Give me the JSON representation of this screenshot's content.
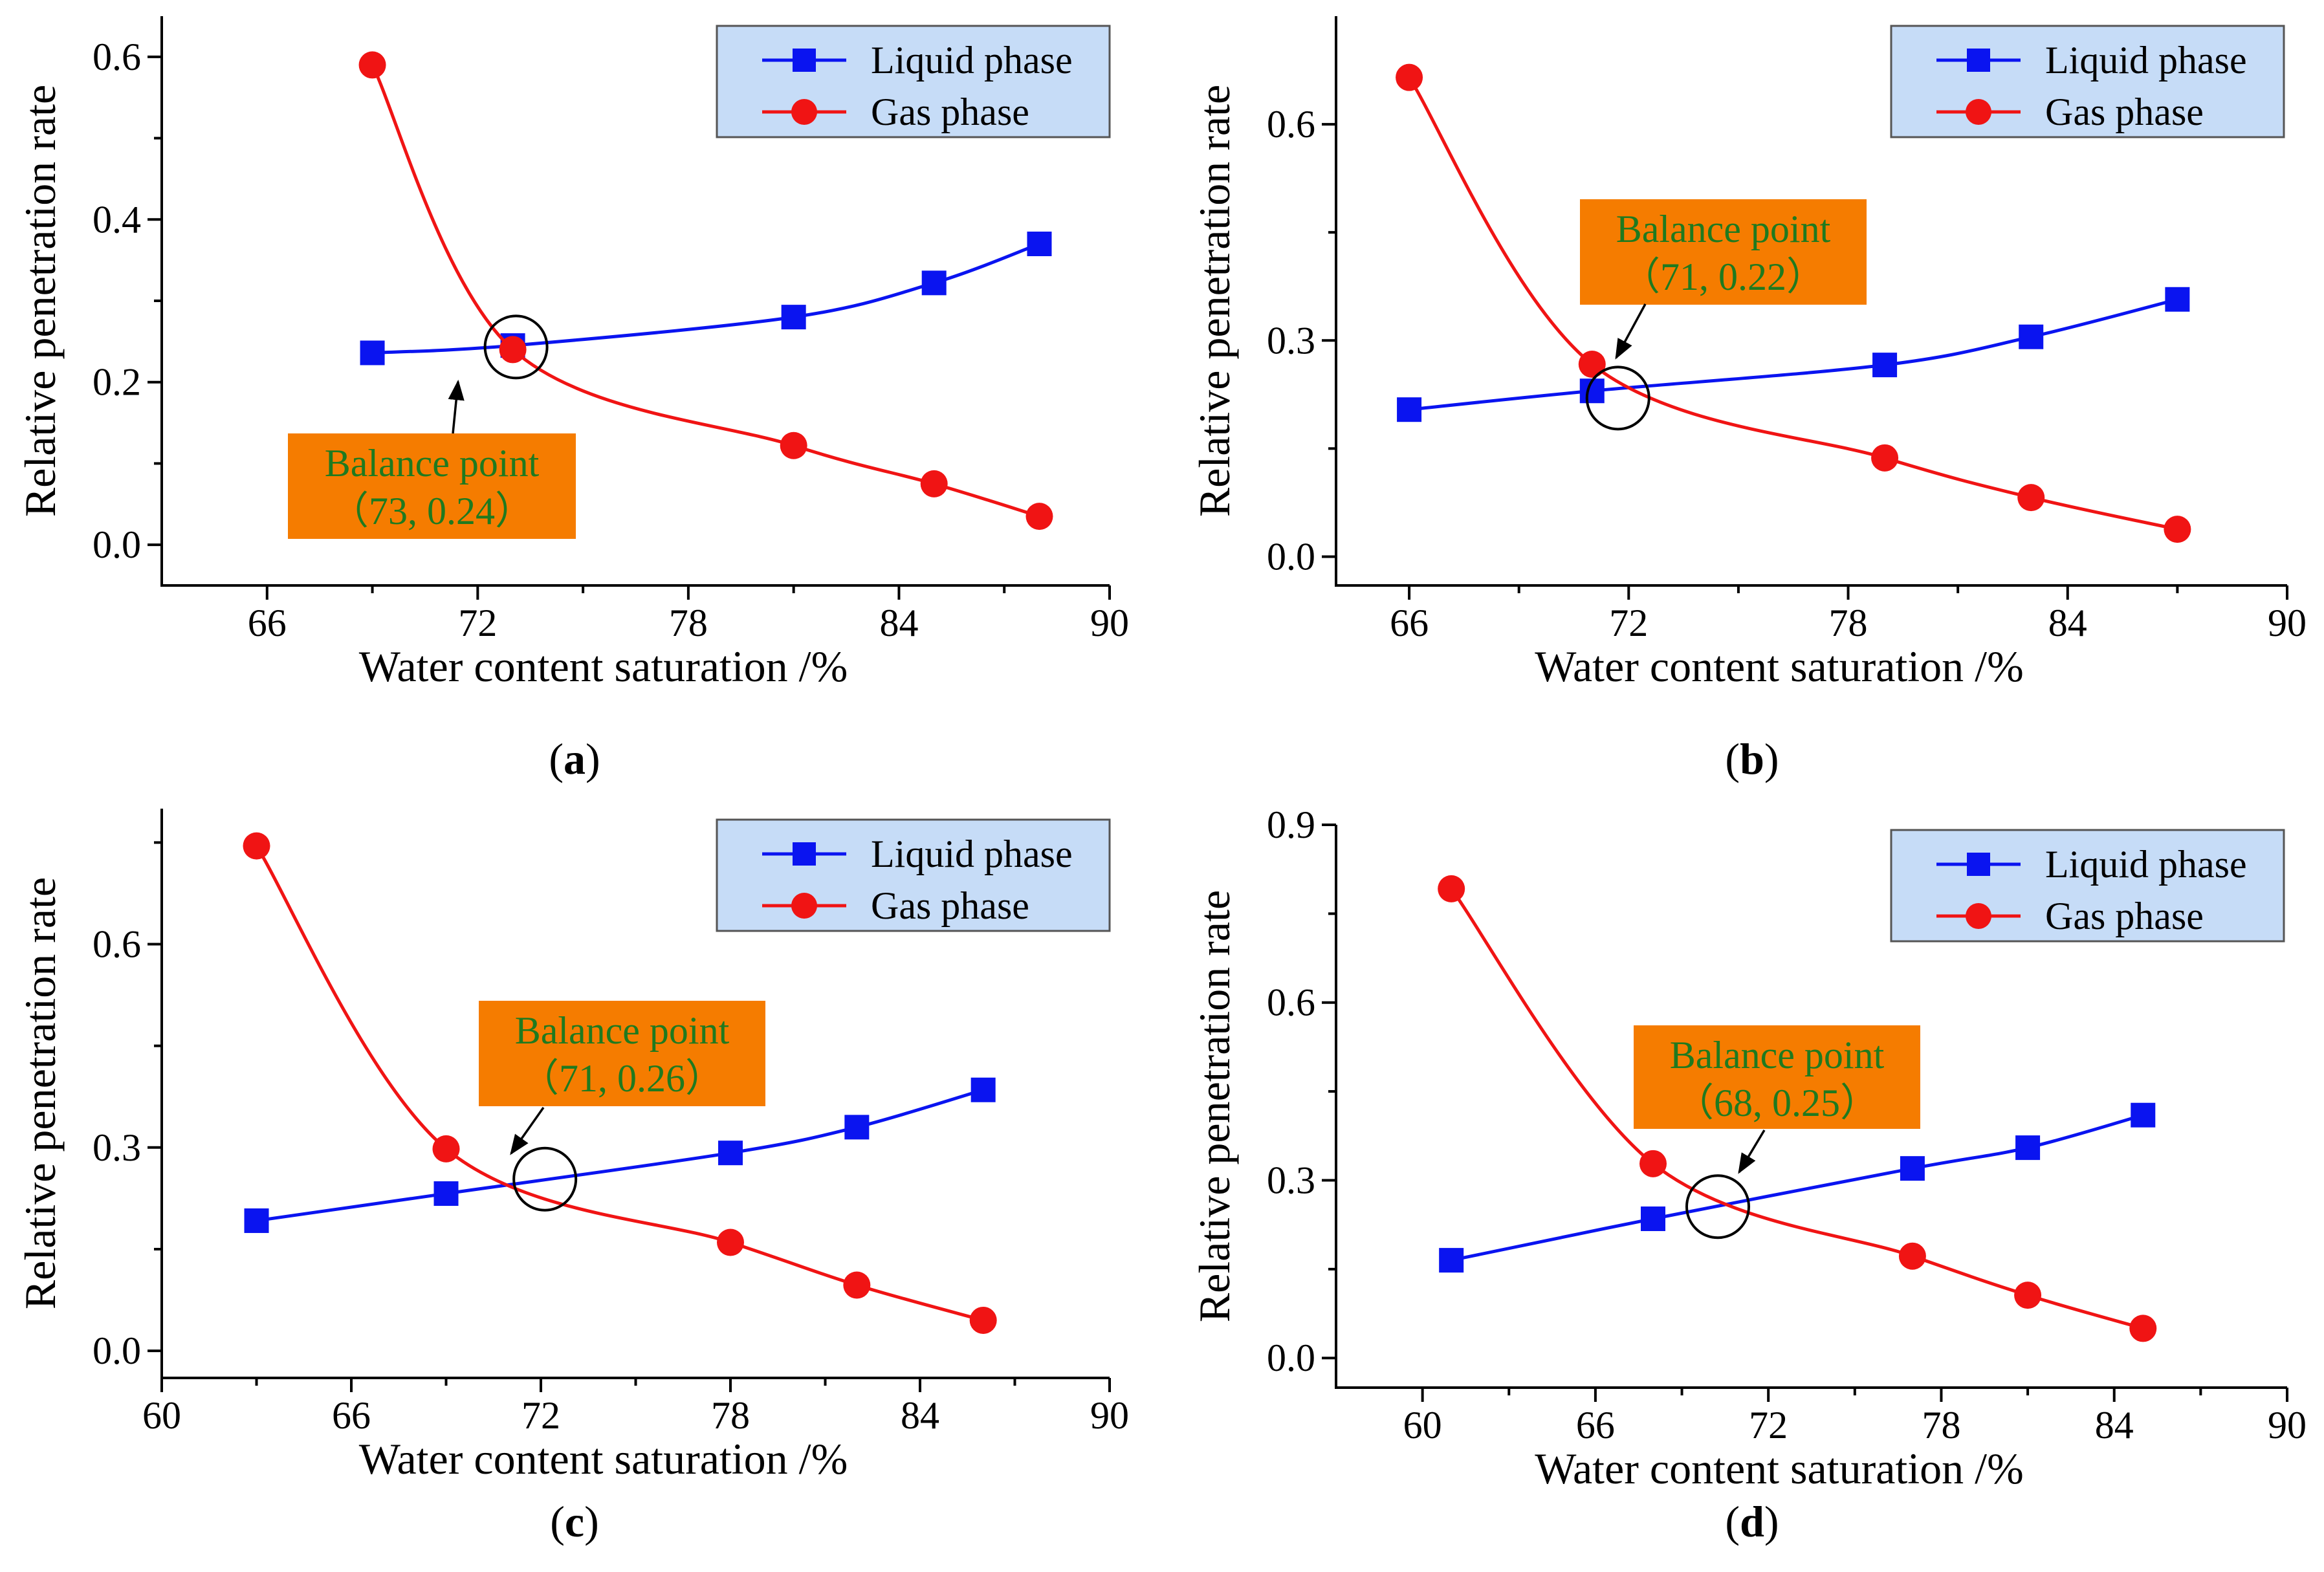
{
  "colors": {
    "liquid": "#0a14f0",
    "gas": "#f01414",
    "legend_bg": "#c6dcf7",
    "balance_bg": "#f57c00",
    "balance_text": "#1f7a1f",
    "axis": "#000000"
  },
  "legend": {
    "liquid": "Liquid phase",
    "gas": "Gas phase"
  },
  "balance_label": "Balance point",
  "chart_data": [
    {
      "id": "a",
      "type": "line",
      "panel_label": "a",
      "xlabel": "Water content saturation /%",
      "ylabel": "Relative penetration rate",
      "xlim": [
        63,
        90
      ],
      "ylim": [
        -0.05,
        0.65
      ],
      "xticks": [
        "66",
        "72",
        "78",
        "84",
        "90"
      ],
      "yticks": [
        "0.0",
        "0.2",
        "0.4",
        "0.6"
      ],
      "series": [
        {
          "name": "Liquid phase",
          "x": [
            69,
            73,
            81,
            85,
            88
          ],
          "y": [
            0.236,
            0.245,
            0.28,
            0.322,
            0.37
          ]
        },
        {
          "name": "Gas phase",
          "x": [
            69,
            73,
            81,
            85,
            88
          ],
          "y": [
            0.59,
            0.24,
            0.122,
            0.075,
            0.035
          ]
        }
      ],
      "balance_point": {
        "x": 73,
        "y": 0.24,
        "coords": "（73, 0.24）"
      }
    },
    {
      "id": "b",
      "type": "line",
      "panel_label": "b",
      "xlabel": "Water content saturation /%",
      "ylabel": "Relative penetration rate",
      "xlim": [
        64,
        90
      ],
      "ylim": [
        -0.04,
        0.75
      ],
      "xticks": [
        "66",
        "72",
        "78",
        "84",
        "90"
      ],
      "yticks": [
        "0.0",
        "0.3",
        "0.6"
      ],
      "series": [
        {
          "name": "Liquid phase",
          "x": [
            66,
            71,
            79,
            83,
            87
          ],
          "y": [
            0.204,
            0.23,
            0.266,
            0.305,
            0.357
          ]
        },
        {
          "name": "Gas phase",
          "x": [
            66,
            71,
            79,
            83,
            87
          ],
          "y": [
            0.665,
            0.267,
            0.137,
            0.082,
            0.038
          ]
        }
      ],
      "balance_point": {
        "x": 71,
        "y": 0.22,
        "coords": "（71, 0.22）"
      }
    },
    {
      "id": "c",
      "type": "line",
      "panel_label": "c",
      "xlabel": "Water content saturation /%",
      "ylabel": "Relative penetration rate",
      "xlim": [
        60,
        90
      ],
      "ylim": [
        -0.04,
        0.8
      ],
      "xticks": [
        "60",
        "66",
        "72",
        "78",
        "84",
        "90"
      ],
      "yticks": [
        "0.0",
        "0.3",
        "0.6"
      ],
      "series": [
        {
          "name": "Liquid phase",
          "x": [
            63,
            69,
            78,
            82,
            86
          ],
          "y": [
            0.192,
            0.232,
            0.292,
            0.33,
            0.385
          ]
        },
        {
          "name": "Gas phase",
          "x": [
            63,
            69,
            78,
            82,
            86
          ],
          "y": [
            0.745,
            0.298,
            0.16,
            0.097,
            0.045
          ]
        }
      ],
      "balance_point": {
        "x": 71,
        "y": 0.26,
        "coords": "（71, 0.26）"
      }
    },
    {
      "id": "d",
      "type": "line",
      "panel_label": "d",
      "xlabel": "Water content saturation /%",
      "ylabel": "Relative penetration rate",
      "xlim": [
        57,
        90
      ],
      "ylim": [
        -0.05,
        0.9
      ],
      "xticks": [
        "60",
        "66",
        "72",
        "78",
        "84",
        "90"
      ],
      "yticks": [
        "0.0",
        "0.3",
        "0.6",
        "0.9"
      ],
      "series": [
        {
          "name": "Liquid phase",
          "x": [
            61,
            68,
            77,
            81,
            85
          ],
          "y": [
            0.165,
            0.235,
            0.32,
            0.355,
            0.41
          ]
        },
        {
          "name": "Gas phase",
          "x": [
            61,
            68,
            77,
            81,
            85
          ],
          "y": [
            0.792,
            0.328,
            0.172,
            0.106,
            0.05
          ]
        }
      ],
      "balance_point": {
        "x": 68,
        "y": 0.25,
        "coords": "（68, 0.25）"
      }
    }
  ]
}
